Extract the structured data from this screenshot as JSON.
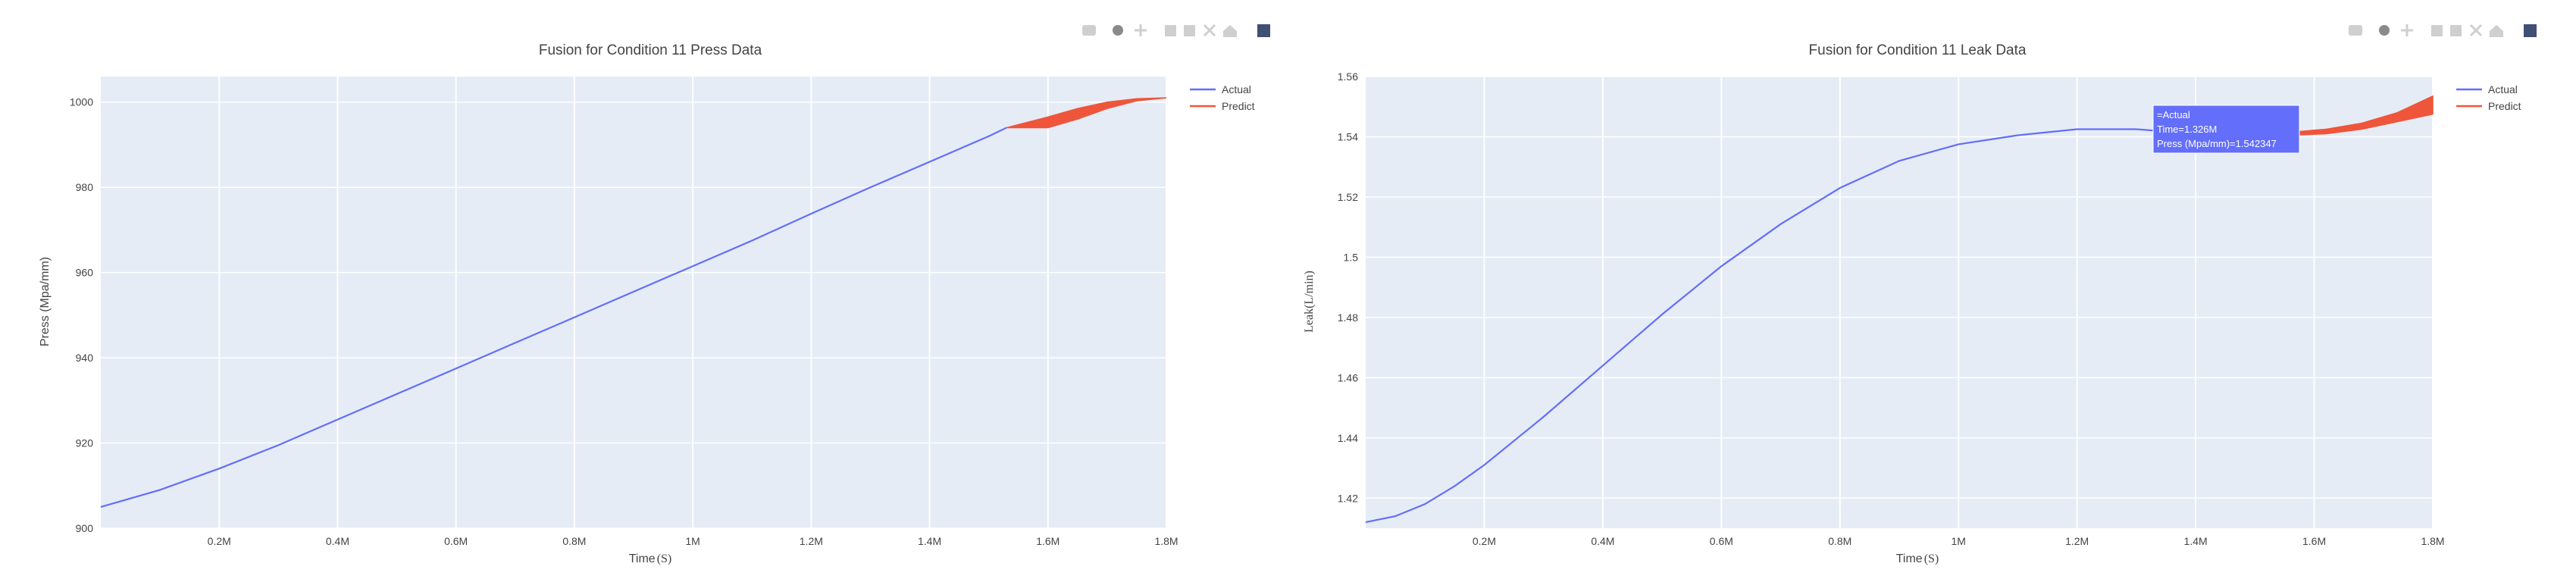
{
  "charts": [
    {
      "title": "Fusion for Condition 11 Press Data",
      "xlabel": "Time",
      "xlabel_unit": "(S)",
      "ylabel": "Press (Mpa/mm)",
      "xticks": [
        "0.2M",
        "0.4M",
        "0.6M",
        "0.8M",
        "1M",
        "1.2M",
        "1.4M",
        "1.6M",
        "1.8M"
      ],
      "yticks": [
        "900",
        "920",
        "940",
        "960",
        "980",
        "1000"
      ],
      "legend": [
        "Actual",
        "Predict"
      ],
      "hover": null
    },
    {
      "title": "Fusion for Condition 11 Leak Data",
      "xlabel": "Time",
      "xlabel_unit": "(S)",
      "ylabel": "Leak(L/min)",
      "xticks": [
        "0.2M",
        "0.4M",
        "0.6M",
        "0.8M",
        "1M",
        "1.2M",
        "1.4M",
        "1.6M",
        "1.8M"
      ],
      "yticks": [
        "1.42",
        "1.44",
        "1.46",
        "1.48",
        "1.5",
        "1.52",
        "1.54",
        "1.56"
      ],
      "legend": [
        "Actual",
        "Predict"
      ],
      "hover": {
        "line1": "=Actual",
        "line2": "Time=1.326M",
        "line3": "Press (Mpa/mm)=1.542347"
      }
    }
  ],
  "chart_data": [
    {
      "type": "line",
      "title": "Fusion for Condition 11 Press Data",
      "xlabel": "Time (S)",
      "ylabel": "Press (Mpa/mm)",
      "xlim": [
        0,
        1800000
      ],
      "ylim": [
        900,
        1006
      ],
      "grid": true,
      "legend_position": "top-right",
      "series": [
        {
          "name": "Actual",
          "color": "#636efa",
          "x": [
            0,
            100000,
            200000,
            300000,
            400000,
            500000,
            600000,
            700000,
            800000,
            900000,
            1000000,
            1100000,
            1200000,
            1300000,
            1400000,
            1500000,
            1530000
          ],
          "y": [
            905,
            909,
            914,
            919.5,
            925.5,
            931.5,
            937.5,
            943.5,
            949.5,
            955.5,
            961.5,
            967.5,
            973.8,
            980,
            986,
            992,
            994
          ]
        },
        {
          "name": "Predict",
          "color": "#ef553b",
          "type": "band",
          "x": [
            1530000,
            1600000,
            1650000,
            1700000,
            1750000,
            1800000
          ],
          "upper": [
            994,
            996.5,
            998.5,
            1000,
            1000.8,
            1001
          ],
          "lower": [
            994,
            994,
            996,
            998.5,
            1000.3,
            1001
          ]
        }
      ]
    },
    {
      "type": "line",
      "title": "Fusion for Condition 11 Leak Data",
      "xlabel": "Time (S)",
      "ylabel": "Leak(L/min)",
      "xlim": [
        0,
        1800000
      ],
      "ylim": [
        1.41,
        1.56
      ],
      "grid": true,
      "legend_position": "top-right",
      "series": [
        {
          "name": "Actual",
          "color": "#636efa",
          "x": [
            0,
            50000,
            100000,
            150000,
            200000,
            300000,
            400000,
            500000,
            600000,
            700000,
            800000,
            900000,
            1000000,
            1100000,
            1200000,
            1300000,
            1400000,
            1500000,
            1560000
          ],
          "y": [
            1.412,
            1.414,
            1.418,
            1.424,
            1.431,
            1.447,
            1.464,
            1.481,
            1.497,
            1.511,
            1.523,
            1.532,
            1.5375,
            1.5405,
            1.5425,
            1.5425,
            1.541,
            1.5405,
            1.541
          ]
        },
        {
          "name": "Predict",
          "color": "#ef553b",
          "type": "band",
          "x": [
            1560000,
            1620000,
            1680000,
            1740000,
            1800000
          ],
          "upper": [
            1.5415,
            1.5425,
            1.5445,
            1.548,
            1.5535
          ],
          "lower": [
            1.5405,
            1.541,
            1.5425,
            1.545,
            1.5475
          ]
        }
      ],
      "annotations": [
        {
          "text": "=Actual / Time=1.326M / Press (Mpa/mm)=1.542347",
          "x": 1326000,
          "y": 1.542347
        }
      ]
    }
  ]
}
